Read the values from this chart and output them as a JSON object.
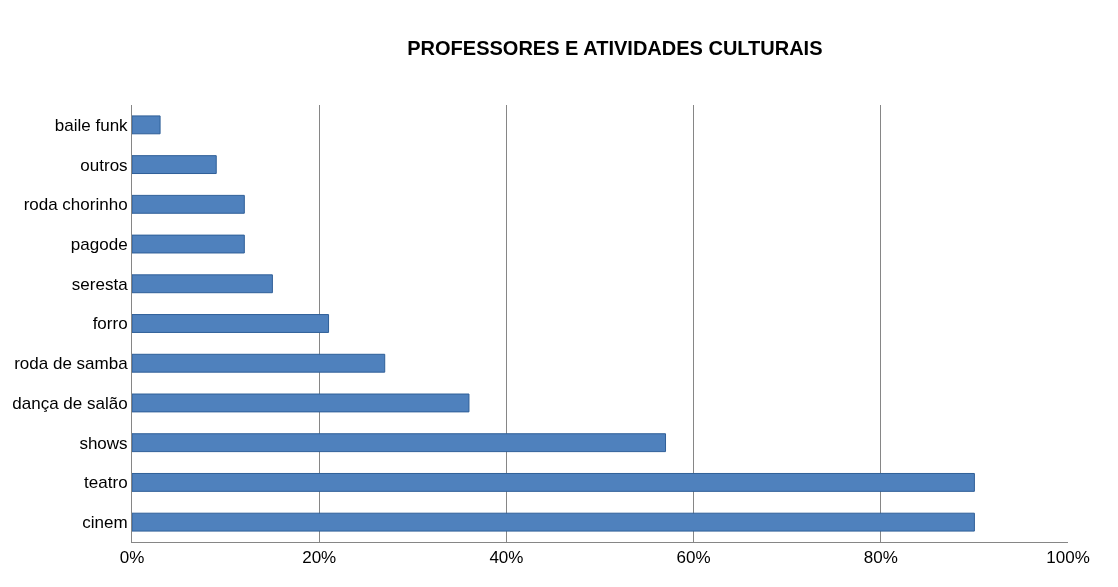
{
  "chart_data": {
    "type": "bar",
    "orientation": "horizontal",
    "title": "PROFESSORES E ATIVIDADES CULTURAIS",
    "categories": [
      "baile funk",
      "outros",
      "roda chorinho",
      "pagode",
      "seresta",
      "forro",
      "roda de samba",
      "dança de salão",
      "shows",
      "teatro",
      "cinem"
    ],
    "values": [
      3,
      9,
      12,
      12,
      15,
      21,
      27,
      36,
      57,
      90,
      90
    ],
    "color": "#4f81bd",
    "xlim": [
      0,
      100
    ],
    "xticks": [
      {
        "value": 0,
        "label": "0%"
      },
      {
        "value": 20,
        "label": "20%"
      },
      {
        "value": 40,
        "label": "40%"
      },
      {
        "value": 60,
        "label": "60%"
      },
      {
        "value": 80,
        "label": "80%"
      },
      {
        "value": 100,
        "label": "100%"
      }
    ],
    "grid": "x",
    "legend": false
  }
}
